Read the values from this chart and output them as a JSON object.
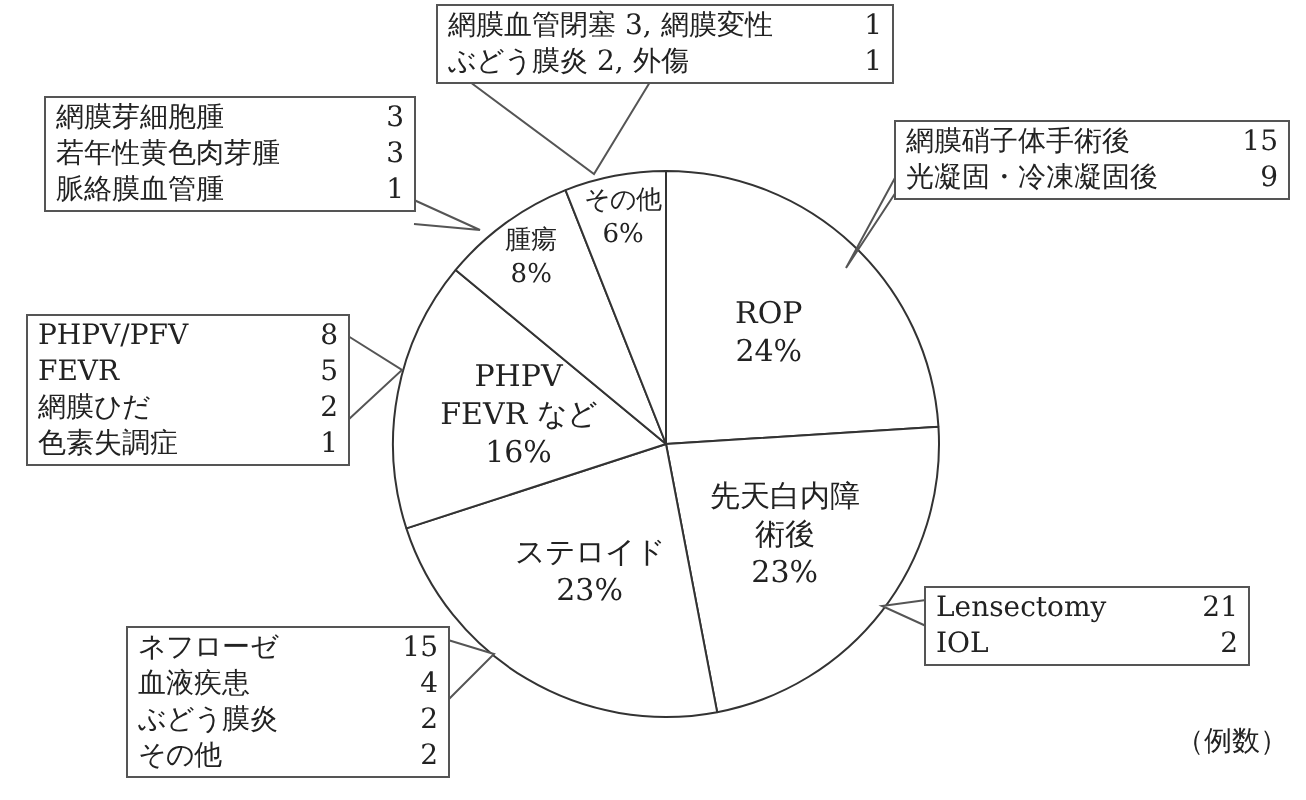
{
  "chart_data": {
    "type": "pie",
    "categories": [
      "ROP",
      "先天白内障術後",
      "ステロイド",
      "PHPV FEVR など",
      "腫瘍",
      "その他"
    ],
    "values": [
      24,
      23,
      23,
      16,
      8,
      6
    ],
    "value_labels": [
      "24%",
      "23%",
      "23%",
      "16%",
      "8%",
      "6%"
    ],
    "colors": [
      "#ffffff",
      "#ffffff",
      "#ffffff",
      "#ffffff",
      "#ffffff",
      "#ffffff"
    ],
    "legend": false,
    "annotations": [
      "網膜血管閉塞 3, 網膜変性 1\nぶどう膜炎 2, 外傷 1",
      "網膜芽細胞腫 3\n若年性黄色肉芽腫 3\n脈絡膜血管腫 1",
      "網膜硝子体手術後 15\n光凝固・冷凍凝固後 9",
      "PHPV/PFV 8\nFEVR 5\n網膜ひだ 2\n色素失調症 1",
      "ネフローゼ 15\n血液疾患 4\nぶどう膜炎 2\nその他 2",
      "Lensectomy 21\nIOL 2",
      "（例数）"
    ]
  }
}
